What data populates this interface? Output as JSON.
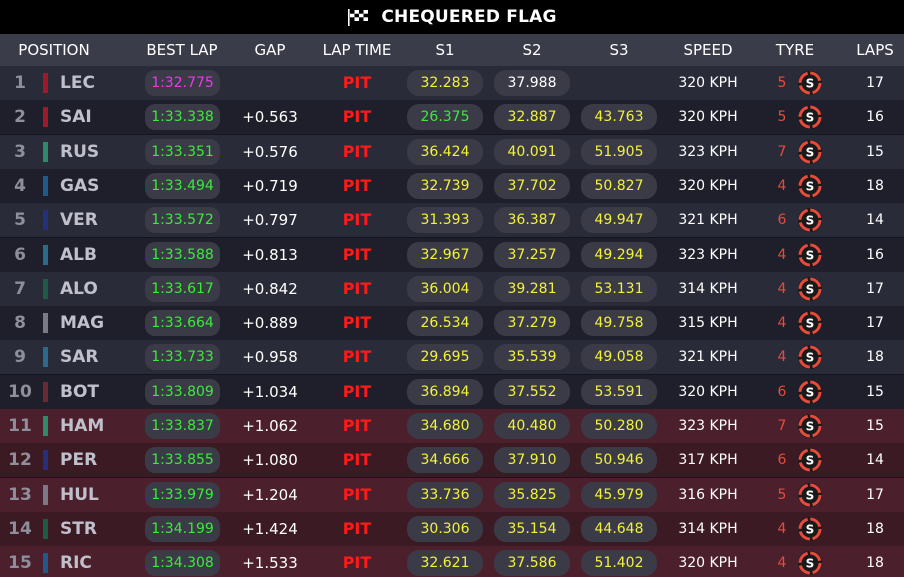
{
  "banner": {
    "title": "CHEQUERED FLAG"
  },
  "columns": {
    "position": "POSITION",
    "best_lap": "BEST LAP",
    "gap": "GAP",
    "lap_time": "LAP TIME",
    "s1": "S1",
    "s2": "S2",
    "s3": "S3",
    "speed": "SPEED",
    "tyre": "TYRE",
    "laps": "LAPS"
  },
  "colors": {
    "personal_best": "#3bea3b",
    "overall_best": "#e83be8",
    "sector_normal": "#ffffff",
    "sector_slower": "#f2f23b",
    "pit": "#ff1a1a",
    "tyre_soft": "#e84b3b"
  },
  "tyre_compound_letter": "S",
  "rows": [
    {
      "pos": "1",
      "driver": "LEC",
      "team_color": "#9b1b2a",
      "best_lap": "1:32.775",
      "best_overall": true,
      "gap": "",
      "lap_time": "PIT",
      "s1": "32.283",
      "s1_c": "yellow",
      "s2": "37.988",
      "s2_c": "white",
      "s3": "",
      "s3_c": "white",
      "speed": "320 KPH",
      "tyre_age": "5",
      "laps": "17"
    },
    {
      "pos": "2",
      "driver": "SAI",
      "team_color": "#9b1b2a",
      "best_lap": "1:33.338",
      "best_overall": false,
      "gap": "+0.563",
      "lap_time": "PIT",
      "s1": "26.375",
      "s1_c": "green",
      "s2": "32.887",
      "s2_c": "yellow",
      "s3": "43.763",
      "s3_c": "yellow",
      "speed": "320 KPH",
      "tyre_age": "5",
      "laps": "16"
    },
    {
      "pos": "3",
      "driver": "RUS",
      "team_color": "#2f8a6a",
      "best_lap": "1:33.351",
      "best_overall": false,
      "gap": "+0.576",
      "lap_time": "PIT",
      "s1": "36.424",
      "s1_c": "yellow",
      "s2": "40.091",
      "s2_c": "yellow",
      "s3": "51.905",
      "s3_c": "yellow",
      "speed": "323 KPH",
      "tyre_age": "7",
      "laps": "15"
    },
    {
      "pos": "4",
      "driver": "GAS",
      "team_color": "#1f5a8a",
      "best_lap": "1:33.494",
      "best_overall": false,
      "gap": "+0.719",
      "lap_time": "PIT",
      "s1": "32.739",
      "s1_c": "yellow",
      "s2": "37.702",
      "s2_c": "yellow",
      "s3": "50.827",
      "s3_c": "yellow",
      "speed": "320 KPH",
      "tyre_age": "4",
      "laps": "18"
    },
    {
      "pos": "5",
      "driver": "VER",
      "team_color": "#23307a",
      "best_lap": "1:33.572",
      "best_overall": false,
      "gap": "+0.797",
      "lap_time": "PIT",
      "s1": "31.393",
      "s1_c": "yellow",
      "s2": "36.387",
      "s2_c": "yellow",
      "s3": "49.947",
      "s3_c": "yellow",
      "speed": "321 KPH",
      "tyre_age": "6",
      "laps": "14"
    },
    {
      "pos": "6",
      "driver": "ALB",
      "team_color": "#2a6a8a",
      "best_lap": "1:33.588",
      "best_overall": false,
      "gap": "+0.813",
      "lap_time": "PIT",
      "s1": "32.967",
      "s1_c": "yellow",
      "s2": "37.257",
      "s2_c": "yellow",
      "s3": "49.294",
      "s3_c": "yellow",
      "speed": "323 KPH",
      "tyre_age": "4",
      "laps": "16"
    },
    {
      "pos": "7",
      "driver": "ALO",
      "team_color": "#1f5a45",
      "best_lap": "1:33.617",
      "best_overall": false,
      "gap": "+0.842",
      "lap_time": "PIT",
      "s1": "36.004",
      "s1_c": "yellow",
      "s2": "39.281",
      "s2_c": "yellow",
      "s3": "53.131",
      "s3_c": "yellow",
      "speed": "314 KPH",
      "tyre_age": "4",
      "laps": "17"
    },
    {
      "pos": "8",
      "driver": "MAG",
      "team_color": "#7a7a85",
      "best_lap": "1:33.664",
      "best_overall": false,
      "gap": "+0.889",
      "lap_time": "PIT",
      "s1": "26.534",
      "s1_c": "yellow",
      "s2": "37.279",
      "s2_c": "yellow",
      "s3": "49.758",
      "s3_c": "yellow",
      "speed": "315 KPH",
      "tyre_age": "4",
      "laps": "17"
    },
    {
      "pos": "9",
      "driver": "SAR",
      "team_color": "#2a6a8a",
      "best_lap": "1:33.733",
      "best_overall": false,
      "gap": "+0.958",
      "lap_time": "PIT",
      "s1": "29.695",
      "s1_c": "yellow",
      "s2": "35.539",
      "s2_c": "yellow",
      "s3": "49.058",
      "s3_c": "yellow",
      "speed": "321 KPH",
      "tyre_age": "4",
      "laps": "18"
    },
    {
      "pos": "10",
      "driver": "BOT",
      "team_color": "#6a2a35",
      "best_lap": "1:33.809",
      "best_overall": false,
      "gap": "+1.034",
      "lap_time": "PIT",
      "s1": "36.894",
      "s1_c": "yellow",
      "s2": "37.552",
      "s2_c": "yellow",
      "s3": "53.591",
      "s3_c": "yellow",
      "speed": "320 KPH",
      "tyre_age": "6",
      "laps": "15"
    },
    {
      "pos": "11",
      "driver": "HAM",
      "team_color": "#2f8a6a",
      "best_lap": "1:33.837",
      "best_overall": false,
      "gap": "+1.062",
      "lap_time": "PIT",
      "s1": "34.680",
      "s1_c": "yellow",
      "s2": "40.480",
      "s2_c": "yellow",
      "s3": "50.280",
      "s3_c": "yellow",
      "speed": "323 KPH",
      "tyre_age": "7",
      "laps": "15"
    },
    {
      "pos": "12",
      "driver": "PER",
      "team_color": "#23307a",
      "best_lap": "1:33.855",
      "best_overall": false,
      "gap": "+1.080",
      "lap_time": "PIT",
      "s1": "34.666",
      "s1_c": "yellow",
      "s2": "37.910",
      "s2_c": "yellow",
      "s3": "50.946",
      "s3_c": "yellow",
      "speed": "317 KPH",
      "tyre_age": "6",
      "laps": "14"
    },
    {
      "pos": "13",
      "driver": "HUL",
      "team_color": "#7a7a85",
      "best_lap": "1:33.979",
      "best_overall": false,
      "gap": "+1.204",
      "lap_time": "PIT",
      "s1": "33.736",
      "s1_c": "yellow",
      "s2": "35.825",
      "s2_c": "yellow",
      "s3": "45.979",
      "s3_c": "yellow",
      "speed": "316 KPH",
      "tyre_age": "5",
      "laps": "17"
    },
    {
      "pos": "14",
      "driver": "STR",
      "team_color": "#1f5a45",
      "best_lap": "1:34.199",
      "best_overall": false,
      "gap": "+1.424",
      "lap_time": "PIT",
      "s1": "30.306",
      "s1_c": "yellow",
      "s2": "35.154",
      "s2_c": "yellow",
      "s3": "44.648",
      "s3_c": "yellow",
      "speed": "314 KPH",
      "tyre_age": "4",
      "laps": "18"
    },
    {
      "pos": "15",
      "driver": "RIC",
      "team_color": "#1f5a8a",
      "best_lap": "1:34.308",
      "best_overall": false,
      "gap": "+1.533",
      "lap_time": "PIT",
      "s1": "32.621",
      "s1_c": "yellow",
      "s2": "37.586",
      "s2_c": "yellow",
      "s3": "51.402",
      "s3_c": "yellow",
      "speed": "320 KPH",
      "tyre_age": "4",
      "laps": "18"
    }
  ]
}
